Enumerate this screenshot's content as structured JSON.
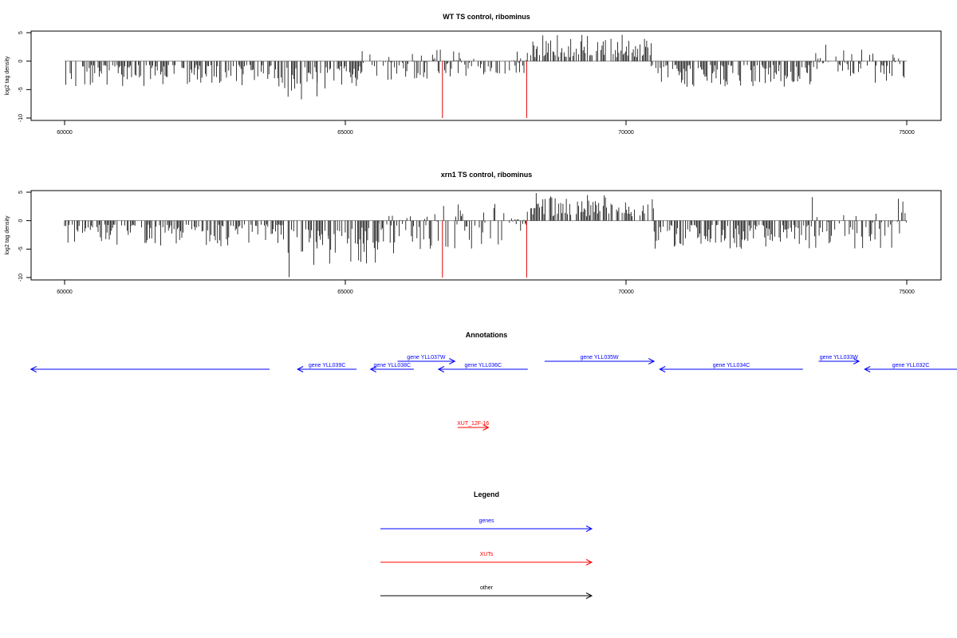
{
  "colors": {
    "data_bar": "#000000",
    "marker": "#e00000",
    "genes": "#0000ff",
    "xuts": "#ff0000",
    "other": "#000000",
    "baseline": "#808080"
  },
  "chart_data": [
    {
      "type": "bar",
      "title": "WT TS control, ribominus",
      "xlabel": "",
      "ylabel": "log2 tag density",
      "xlim": [
        60000,
        75000
      ],
      "ylim": [
        -10,
        5
      ],
      "xticks": [
        60000,
        65000,
        70000,
        75000
      ],
      "yticks": [
        5,
        0,
        -5,
        -10
      ],
      "markers_x": [
        66730,
        68230
      ],
      "segments": [
        {
          "from": 60000,
          "to": 63900,
          "min": -4.5,
          "max": 0
        },
        {
          "from": 63900,
          "to": 64500,
          "min": -7,
          "max": 0
        },
        {
          "from": 64500,
          "to": 65300,
          "min": -6,
          "max": 0
        },
        {
          "from": 65300,
          "to": 66700,
          "min": -3.5,
          "max": 2.2
        },
        {
          "from": 66750,
          "to": 68250,
          "min": -3,
          "max": 1.8
        },
        {
          "from": 68300,
          "to": 70450,
          "min": 0,
          "max": 4.7
        },
        {
          "from": 70450,
          "to": 73300,
          "min": -4.5,
          "max": 0
        },
        {
          "from": 73300,
          "to": 74000,
          "min": -2,
          "max": 3
        },
        {
          "from": 74000,
          "to": 75000,
          "min": -4,
          "max": 2
        }
      ]
    },
    {
      "type": "bar",
      "title": "xrn1 TS control, ribominus",
      "xlabel": "",
      "ylabel": "log2 tag density",
      "xlim": [
        60000,
        75000
      ],
      "ylim": [
        -10,
        5
      ],
      "xticks": [
        60000,
        65000,
        70000,
        75000
      ],
      "yticks": [
        5,
        0,
        -5,
        -10
      ],
      "markers_x": [
        66730,
        68230
      ],
      "segments": [
        {
          "from": 60000,
          "to": 63900,
          "min": -4.5,
          "max": 0
        },
        {
          "from": 63900,
          "to": 64700,
          "min": -10,
          "max": 0
        },
        {
          "from": 64700,
          "to": 65600,
          "min": -8,
          "max": 0
        },
        {
          "from": 65600,
          "to": 66700,
          "min": -6,
          "max": 2.5
        },
        {
          "from": 66750,
          "to": 68250,
          "min": -5,
          "max": 3
        },
        {
          "from": 68300,
          "to": 70500,
          "min": 0,
          "max": 5
        },
        {
          "from": 70500,
          "to": 73300,
          "min": -5,
          "max": 0
        },
        {
          "from": 73300,
          "to": 75000,
          "min": -5,
          "max": 5
        }
      ]
    }
  ],
  "annotations": {
    "title": "Annotations",
    "features": [
      {
        "label": "",
        "start": 59400,
        "end": 63650,
        "strand": "-",
        "kind": "genes",
        "row": 0
      },
      {
        "label": "gene YLL039C",
        "start": 64150,
        "end": 65200,
        "strand": "-",
        "kind": "genes",
        "row": 0
      },
      {
        "label": "gene YLL038C",
        "start": 65450,
        "end": 66220,
        "strand": "-",
        "kind": "genes",
        "row": 0
      },
      {
        "label": "gene YLL037W",
        "start": 65930,
        "end": 66950,
        "strand": "+",
        "kind": "genes",
        "row": 1
      },
      {
        "label": "gene YLL036C",
        "start": 66660,
        "end": 68250,
        "strand": "-",
        "kind": "genes",
        "row": 0
      },
      {
        "label": "gene YLL035W",
        "start": 68550,
        "end": 70500,
        "strand": "+",
        "kind": "genes",
        "row": 1
      },
      {
        "label": "gene YLL034C",
        "start": 70600,
        "end": 73150,
        "strand": "-",
        "kind": "genes",
        "row": 0
      },
      {
        "label": "gene YLL033W",
        "start": 73430,
        "end": 74150,
        "strand": "+",
        "kind": "genes",
        "row": 1
      },
      {
        "label": "gene YLL032C",
        "start": 74250,
        "end": 76500,
        "strand": "-",
        "kind": "genes",
        "row": 0
      },
      {
        "label": "XUT_12F-16",
        "start": 67000,
        "end": 67550,
        "strand": "+",
        "kind": "xuts",
        "row": 2
      }
    ]
  },
  "legend": {
    "title": "Legend",
    "items": [
      {
        "label": "genes",
        "kind": "genes"
      },
      {
        "label": "XUTs",
        "kind": "xuts"
      },
      {
        "label": "other",
        "kind": "other"
      }
    ]
  }
}
